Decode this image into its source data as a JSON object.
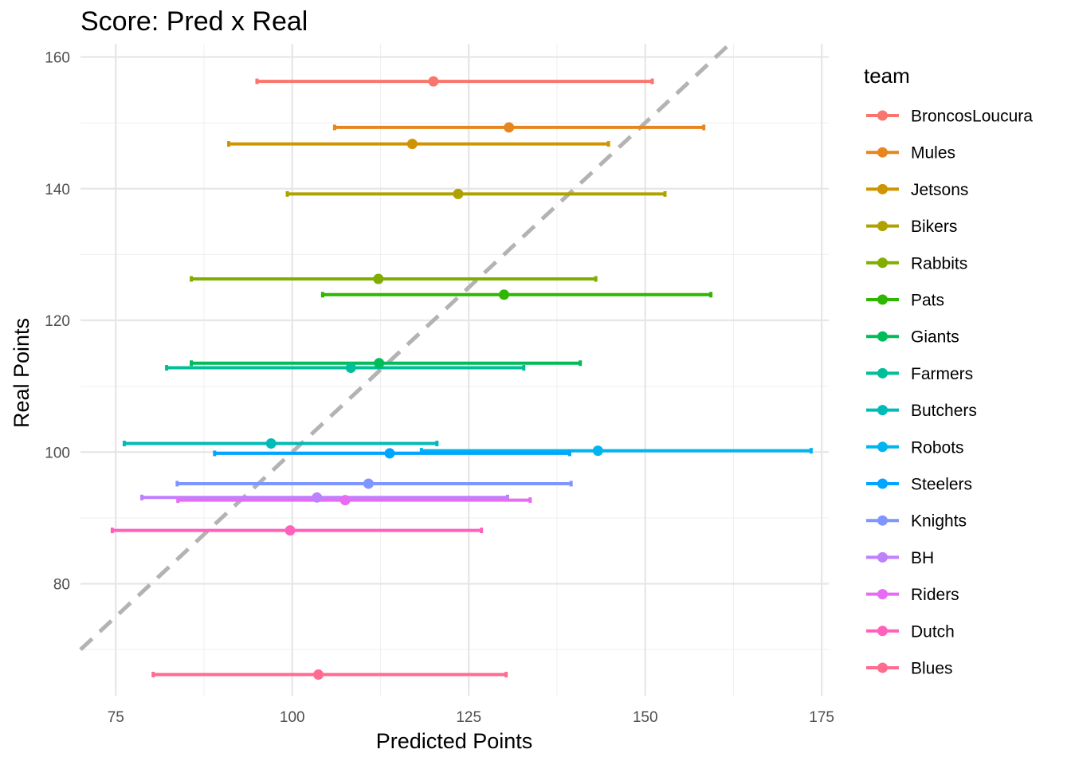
{
  "chart_data": {
    "type": "errorbar-scatter",
    "title": "Score: Pred x Real",
    "xlabel": "Predicted Points",
    "ylabel": "Real Points",
    "xlim": [
      70,
      176
    ],
    "ylim": [
      63,
      162
    ],
    "x_ticks": [
      75,
      100,
      125,
      150,
      175
    ],
    "y_ticks": [
      80,
      100,
      120,
      140,
      160
    ],
    "x_tick_labels": [
      "75",
      "100",
      "125",
      "150",
      "175"
    ],
    "y_tick_labels": [
      "80",
      "100",
      "120",
      "140",
      "160"
    ],
    "reference_line": {
      "type": "identity",
      "color": "#b3b3b3",
      "style": "dashed"
    },
    "legend": {
      "title": "team",
      "placement": "right"
    },
    "series": [
      {
        "name": "BroncosLoucura",
        "color": "#F8766D",
        "x": 120.0,
        "xmin": 95.0,
        "xmax": 151.0,
        "y": 156.3
      },
      {
        "name": "Mules",
        "color": "#E7851E",
        "x": 130.7,
        "xmin": 106.0,
        "xmax": 158.3,
        "y": 149.3
      },
      {
        "name": "Jetsons",
        "color": "#CF9400",
        "x": 117.0,
        "xmin": 91.0,
        "xmax": 144.8,
        "y": 146.8
      },
      {
        "name": "Bikers",
        "color": "#AFA100",
        "x": 123.5,
        "xmin": 99.3,
        "xmax": 152.8,
        "y": 139.2
      },
      {
        "name": "Rabbits",
        "color": "#81AD00",
        "x": 112.2,
        "xmin": 85.7,
        "xmax": 143.0,
        "y": 126.3
      },
      {
        "name": "Pats",
        "color": "#2FB600",
        "x": 130.0,
        "xmin": 104.3,
        "xmax": 159.3,
        "y": 123.9
      },
      {
        "name": "Giants",
        "color": "#00BC59",
        "x": 112.3,
        "xmin": 85.7,
        "xmax": 140.8,
        "y": 113.5
      },
      {
        "name": "Farmers",
        "color": "#00BE98",
        "x": 108.3,
        "xmin": 82.2,
        "xmax": 132.8,
        "y": 112.8
      },
      {
        "name": "Butchers",
        "color": "#00BBB8",
        "x": 97.0,
        "xmin": 76.2,
        "xmax": 120.5,
        "y": 101.3
      },
      {
        "name": "Robots",
        "color": "#00B4EF",
        "x": 143.3,
        "xmin": 118.3,
        "xmax": 173.5,
        "y": 100.2
      },
      {
        "name": "Steelers",
        "color": "#00A5FF",
        "x": 113.8,
        "xmin": 89.0,
        "xmax": 139.3,
        "y": 99.8
      },
      {
        "name": "Knights",
        "color": "#7F96FF",
        "x": 110.8,
        "xmin": 83.7,
        "xmax": 139.5,
        "y": 95.2
      },
      {
        "name": "BH",
        "color": "#BF80FF",
        "x": 103.5,
        "xmin": 78.7,
        "xmax": 130.5,
        "y": 93.1
      },
      {
        "name": "Riders",
        "color": "#E76BF3",
        "x": 107.5,
        "xmin": 83.8,
        "xmax": 133.7,
        "y": 92.7
      },
      {
        "name": "Dutch",
        "color": "#FF62BC",
        "x": 99.7,
        "xmin": 74.5,
        "xmax": 126.8,
        "y": 88.1
      },
      {
        "name": "Blues",
        "color": "#FF6C90",
        "x": 103.7,
        "xmin": 80.3,
        "xmax": 130.3,
        "y": 66.2
      }
    ]
  }
}
